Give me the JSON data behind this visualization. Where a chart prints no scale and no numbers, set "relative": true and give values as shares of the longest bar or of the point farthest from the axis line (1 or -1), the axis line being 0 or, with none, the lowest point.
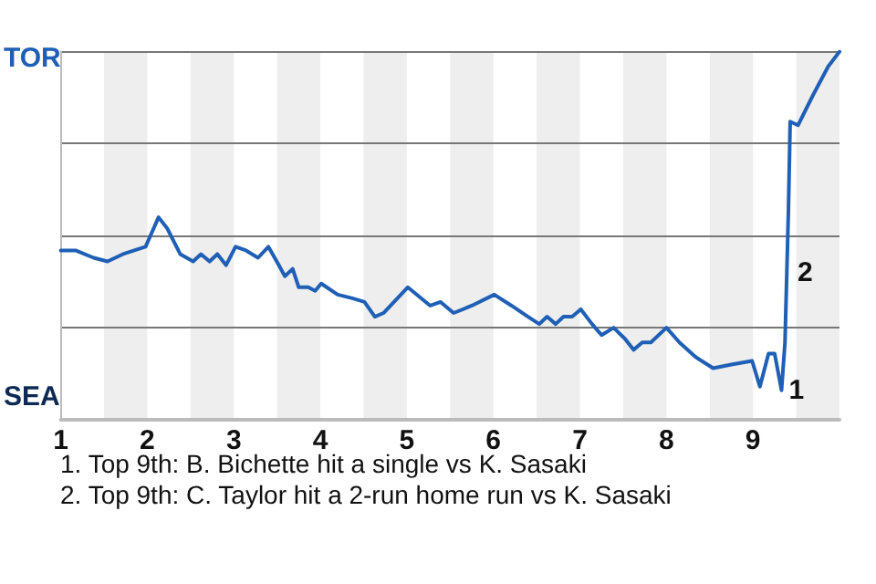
{
  "chart_data": {
    "type": "line",
    "relative": true,
    "color": "#1f5fb5",
    "line_style": "solid",
    "marker": "none",
    "grid": "y",
    "xlim": [
      1,
      10
    ],
    "xticks": [
      1,
      2,
      3,
      4,
      5,
      6,
      7,
      8,
      9
    ],
    "x": [
      1,
      1.17,
      1.38,
      1.54,
      1.72,
      1.98,
      2.13,
      2.23,
      2.38,
      2.53,
      2.62,
      2.72,
      2.81,
      2.91,
      3.02,
      3.14,
      3.28,
      3.4,
      3.52,
      3.59,
      3.68,
      3.75,
      3.86,
      3.94,
      4.01,
      4.2,
      4.37,
      4.51,
      4.63,
      4.73,
      5.01,
      5.27,
      5.39,
      5.54,
      5.75,
      6.01,
      6.21,
      6.4,
      6.53,
      6.62,
      6.72,
      6.81,
      6.91,
      7.01,
      7.14,
      7.25,
      7.39,
      7.52,
      7.62,
      7.72,
      7.82,
      8,
      8.15,
      8.34,
      8.54,
      8.75,
      8.99,
      9.08,
      9.18,
      9.25,
      9.33,
      9.37,
      9.41,
      9.43,
      9.52,
      9.69,
      9.87,
      10
    ],
    "values": [
      0.46,
      0.46,
      0.44,
      0.43,
      0.45,
      0.47,
      0.55,
      0.52,
      0.45,
      0.43,
      0.45,
      0.43,
      0.45,
      0.42,
      0.47,
      0.46,
      0.44,
      0.47,
      0.42,
      0.39,
      0.41,
      0.36,
      0.36,
      0.35,
      0.37,
      0.34,
      0.33,
      0.32,
      0.28,
      0.29,
      0.36,
      0.31,
      0.32,
      0.29,
      0.31,
      0.34,
      0.31,
      0.28,
      0.26,
      0.28,
      0.26,
      0.28,
      0.28,
      0.3,
      0.26,
      0.23,
      0.25,
      0.22,
      0.19,
      0.21,
      0.21,
      0.25,
      0.21,
      0.17,
      0.14,
      0.15,
      0.16,
      0.09,
      0.18,
      0.18,
      0.08,
      0.21,
      0.57,
      0.81,
      0.8,
      0.88,
      0.96,
      1
    ],
    "bands": [
      {
        "axis": "x",
        "from": 1.5,
        "to": 2,
        "color": "#eeeeee"
      },
      {
        "axis": "x",
        "from": 2.5,
        "to": 3,
        "color": "#eeeeee"
      },
      {
        "axis": "x",
        "from": 3.5,
        "to": 4,
        "color": "#eeeeee"
      },
      {
        "axis": "x",
        "from": 4.5,
        "to": 5,
        "color": "#eeeeee"
      },
      {
        "axis": "x",
        "from": 5.5,
        "to": 6,
        "color": "#eeeeee"
      },
      {
        "axis": "x",
        "from": 6.5,
        "to": 7,
        "color": "#eeeeee"
      },
      {
        "axis": "x",
        "from": 7.5,
        "to": 8,
        "color": "#eeeeee"
      },
      {
        "axis": "x",
        "from": 8.5,
        "to": 9,
        "color": "#eeeeee"
      },
      {
        "axis": "x",
        "from": 9.5,
        "to": 10,
        "color": "#eeeeee"
      }
    ],
    "annotations": [
      "TOR",
      "SEA",
      {
        "text": "1",
        "x": 9.33,
        "y": 0.08
      },
      {
        "text": "2",
        "x": 9.43,
        "y": 0.4
      },
      "1. Top 9th: B. Bichette hit a single vs K. Sasaki",
      "2. Top 9th: C. Taylor hit a 2-run home run vs K. Sasaki"
    ]
  }
}
